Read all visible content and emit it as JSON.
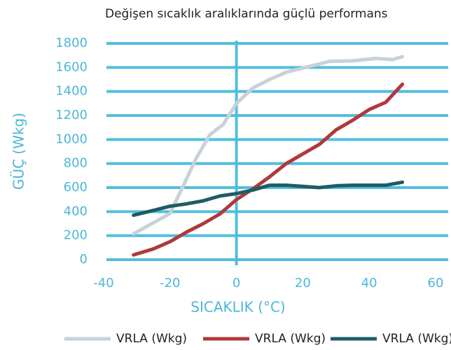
{
  "chart_data": {
    "type": "line",
    "title": "Değişen sıcaklık aralıklarında güçlü performans",
    "x_label": "SICAKLIK (°C)",
    "y_label": "GÜÇ (Wkg)",
    "xlim": [
      -40,
      60
    ],
    "xticks": [
      -40,
      -20,
      0,
      20,
      40,
      60
    ],
    "ylim": [
      0,
      1800
    ],
    "yticks": [
      0,
      200,
      400,
      600,
      800,
      1000,
      1200,
      1400,
      1600,
      1800
    ],
    "grid": true,
    "legend": "bottom",
    "series": [
      {
        "name": "VRLA (Wkg)",
        "color": "#c7d2d8",
        "x": [
          -31,
          -20,
          -15,
          -12,
          -8,
          -4,
          0,
          5,
          10,
          15,
          20,
          28,
          35,
          42,
          47,
          50
        ],
        "values": [
          215,
          385,
          675,
          850,
          1040,
          1125,
          1300,
          1430,
          1500,
          1560,
          1595,
          1650,
          1655,
          1675,
          1665,
          1690
        ]
      },
      {
        "name": "VRLA (Wkg)",
        "color": "#b0393b",
        "x": [
          -31,
          -25,
          -20,
          -15,
          -10,
          -5,
          0,
          5,
          10,
          15,
          20,
          25,
          30,
          35,
          40,
          45,
          50
        ],
        "values": [
          40,
          90,
          150,
          230,
          300,
          380,
          500,
          590,
          690,
          800,
          880,
          960,
          1080,
          1160,
          1250,
          1310,
          1460
        ]
      },
      {
        "name": "VRLA (Wkg)",
        "color": "#1d5d62",
        "x": [
          -31,
          -25,
          -20,
          -15,
          -10,
          -5,
          0,
          5,
          10,
          15,
          20,
          25,
          30,
          35,
          40,
          45,
          50
        ],
        "values": [
          370,
          410,
          445,
          465,
          490,
          530,
          550,
          580,
          620,
          620,
          610,
          600,
          615,
          620,
          620,
          620,
          645
        ]
      }
    ]
  }
}
